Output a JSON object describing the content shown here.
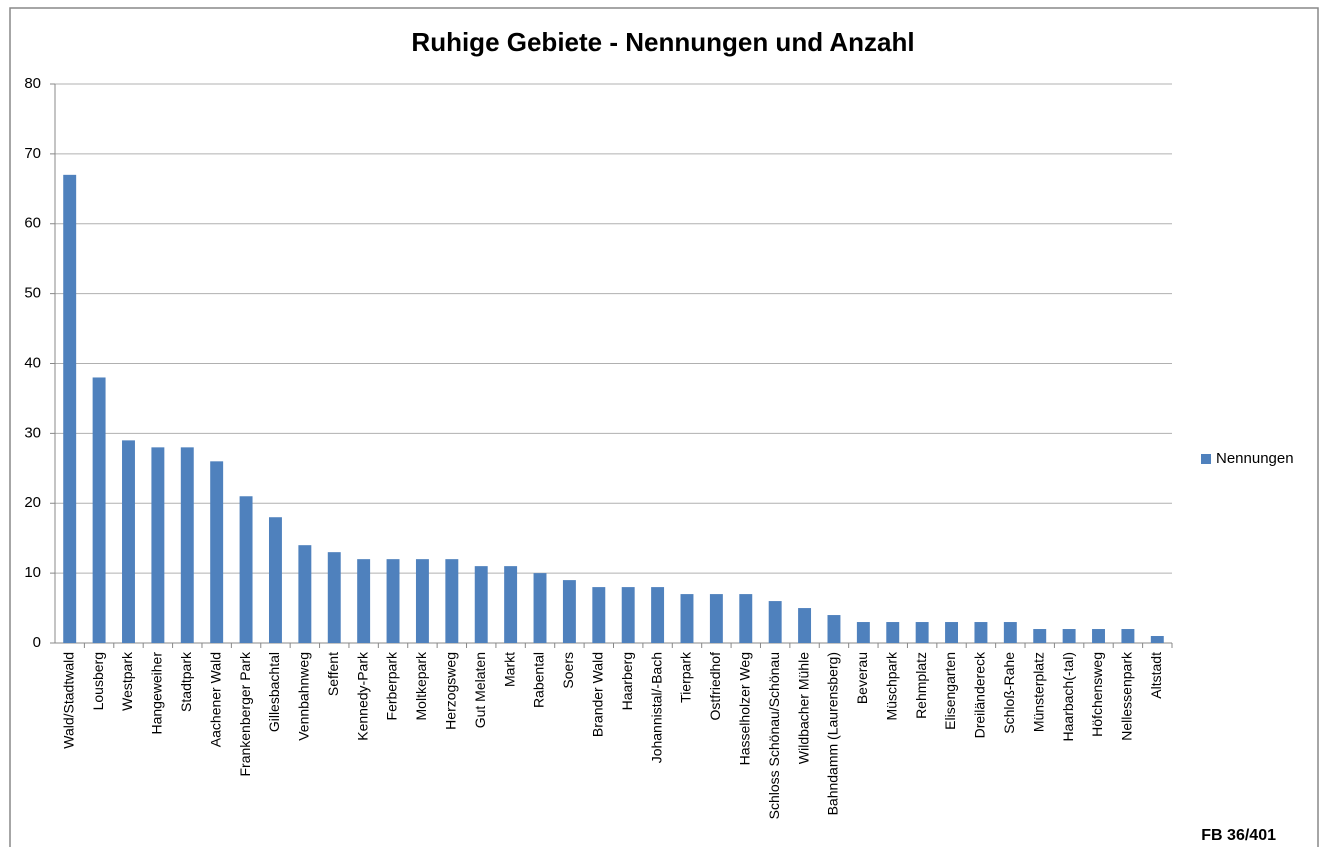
{
  "chart_data": {
    "type": "bar",
    "title": "Ruhige Gebiete - Nennungen und Anzahl",
    "categories": [
      "Wald/Stadtwald",
      "Lousberg",
      "Westpark",
      "Hangeweiher",
      "Stadtpark",
      "Aachener Wald",
      "Frankenberger Park",
      "Gillesbachtal",
      "Vennbahnweg",
      "Seffent",
      "Kennedy-Park",
      "Ferberpark",
      "Moltkepark",
      "Herzogsweg",
      "Gut Melaten",
      "Markt",
      "Rabental",
      "Soers",
      "Brander Wald",
      "Haarberg",
      "Johannistal/-Bach",
      "Tierpark",
      "Ostfriedhof",
      "Hasselholzer Weg",
      "Schloss Schönau/Schönau",
      "Wildbacher Mühle",
      "Bahndamm (Laurensberg)",
      "Beverau",
      "Müschpark",
      "Rehmplatz",
      "Elisengarten",
      "Dreiländereck",
      "Schloß-Rahe",
      "Münsterplatz",
      "Haarbach(-tal)",
      "Höfchensweg",
      "Nellessenpark",
      "Altstadt"
    ],
    "series": [
      {
        "name": "Nennungen",
        "color": "#4f81bd",
        "values": [
          67,
          38,
          29,
          28,
          28,
          26,
          21,
          18,
          14,
          13,
          12,
          12,
          12,
          12,
          11,
          11,
          10,
          9,
          8,
          8,
          8,
          7,
          7,
          7,
          6,
          5,
          4,
          3,
          3,
          3,
          3,
          3,
          3,
          2,
          2,
          2,
          2,
          1
        ]
      }
    ],
    "ylim": [
      0,
      80
    ],
    "yticks": [
      0,
      10,
      20,
      30,
      40,
      50,
      60,
      70,
      80
    ],
    "grid": true,
    "legend": "right",
    "footer": "FB 36/401"
  }
}
